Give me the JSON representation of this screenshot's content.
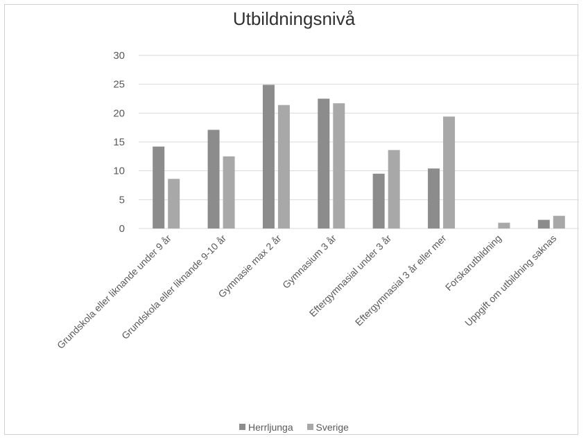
{
  "chart_data": {
    "type": "bar",
    "title": "Utbildningsnivå",
    "xlabel": "",
    "ylabel": "",
    "ylim": [
      0,
      30
    ],
    "yticks": [
      0,
      5,
      10,
      15,
      20,
      25,
      30
    ],
    "grid": true,
    "legend_position": "bottom",
    "categories": [
      "Grundskola eller liknande under 9 år",
      "Grundskola eller liknande 9-10 år",
      "Gymnasie max 2 år",
      "Gymnasium 3 år",
      "Eftergymnasial under 3 år",
      "Eftergymnasial 3 år eller mer",
      "Forskarutbildning",
      "Uppgift om utbildning saknas"
    ],
    "series": [
      {
        "name": "Herrljunga",
        "color": "#8c8c8c",
        "values": [
          14.2,
          17.1,
          24.9,
          22.5,
          9.5,
          10.4,
          0.0,
          1.5
        ]
      },
      {
        "name": "Sverige",
        "color": "#a8a8a8",
        "values": [
          8.6,
          12.5,
          21.4,
          21.7,
          13.6,
          19.4,
          1.0,
          2.2
        ]
      }
    ]
  }
}
